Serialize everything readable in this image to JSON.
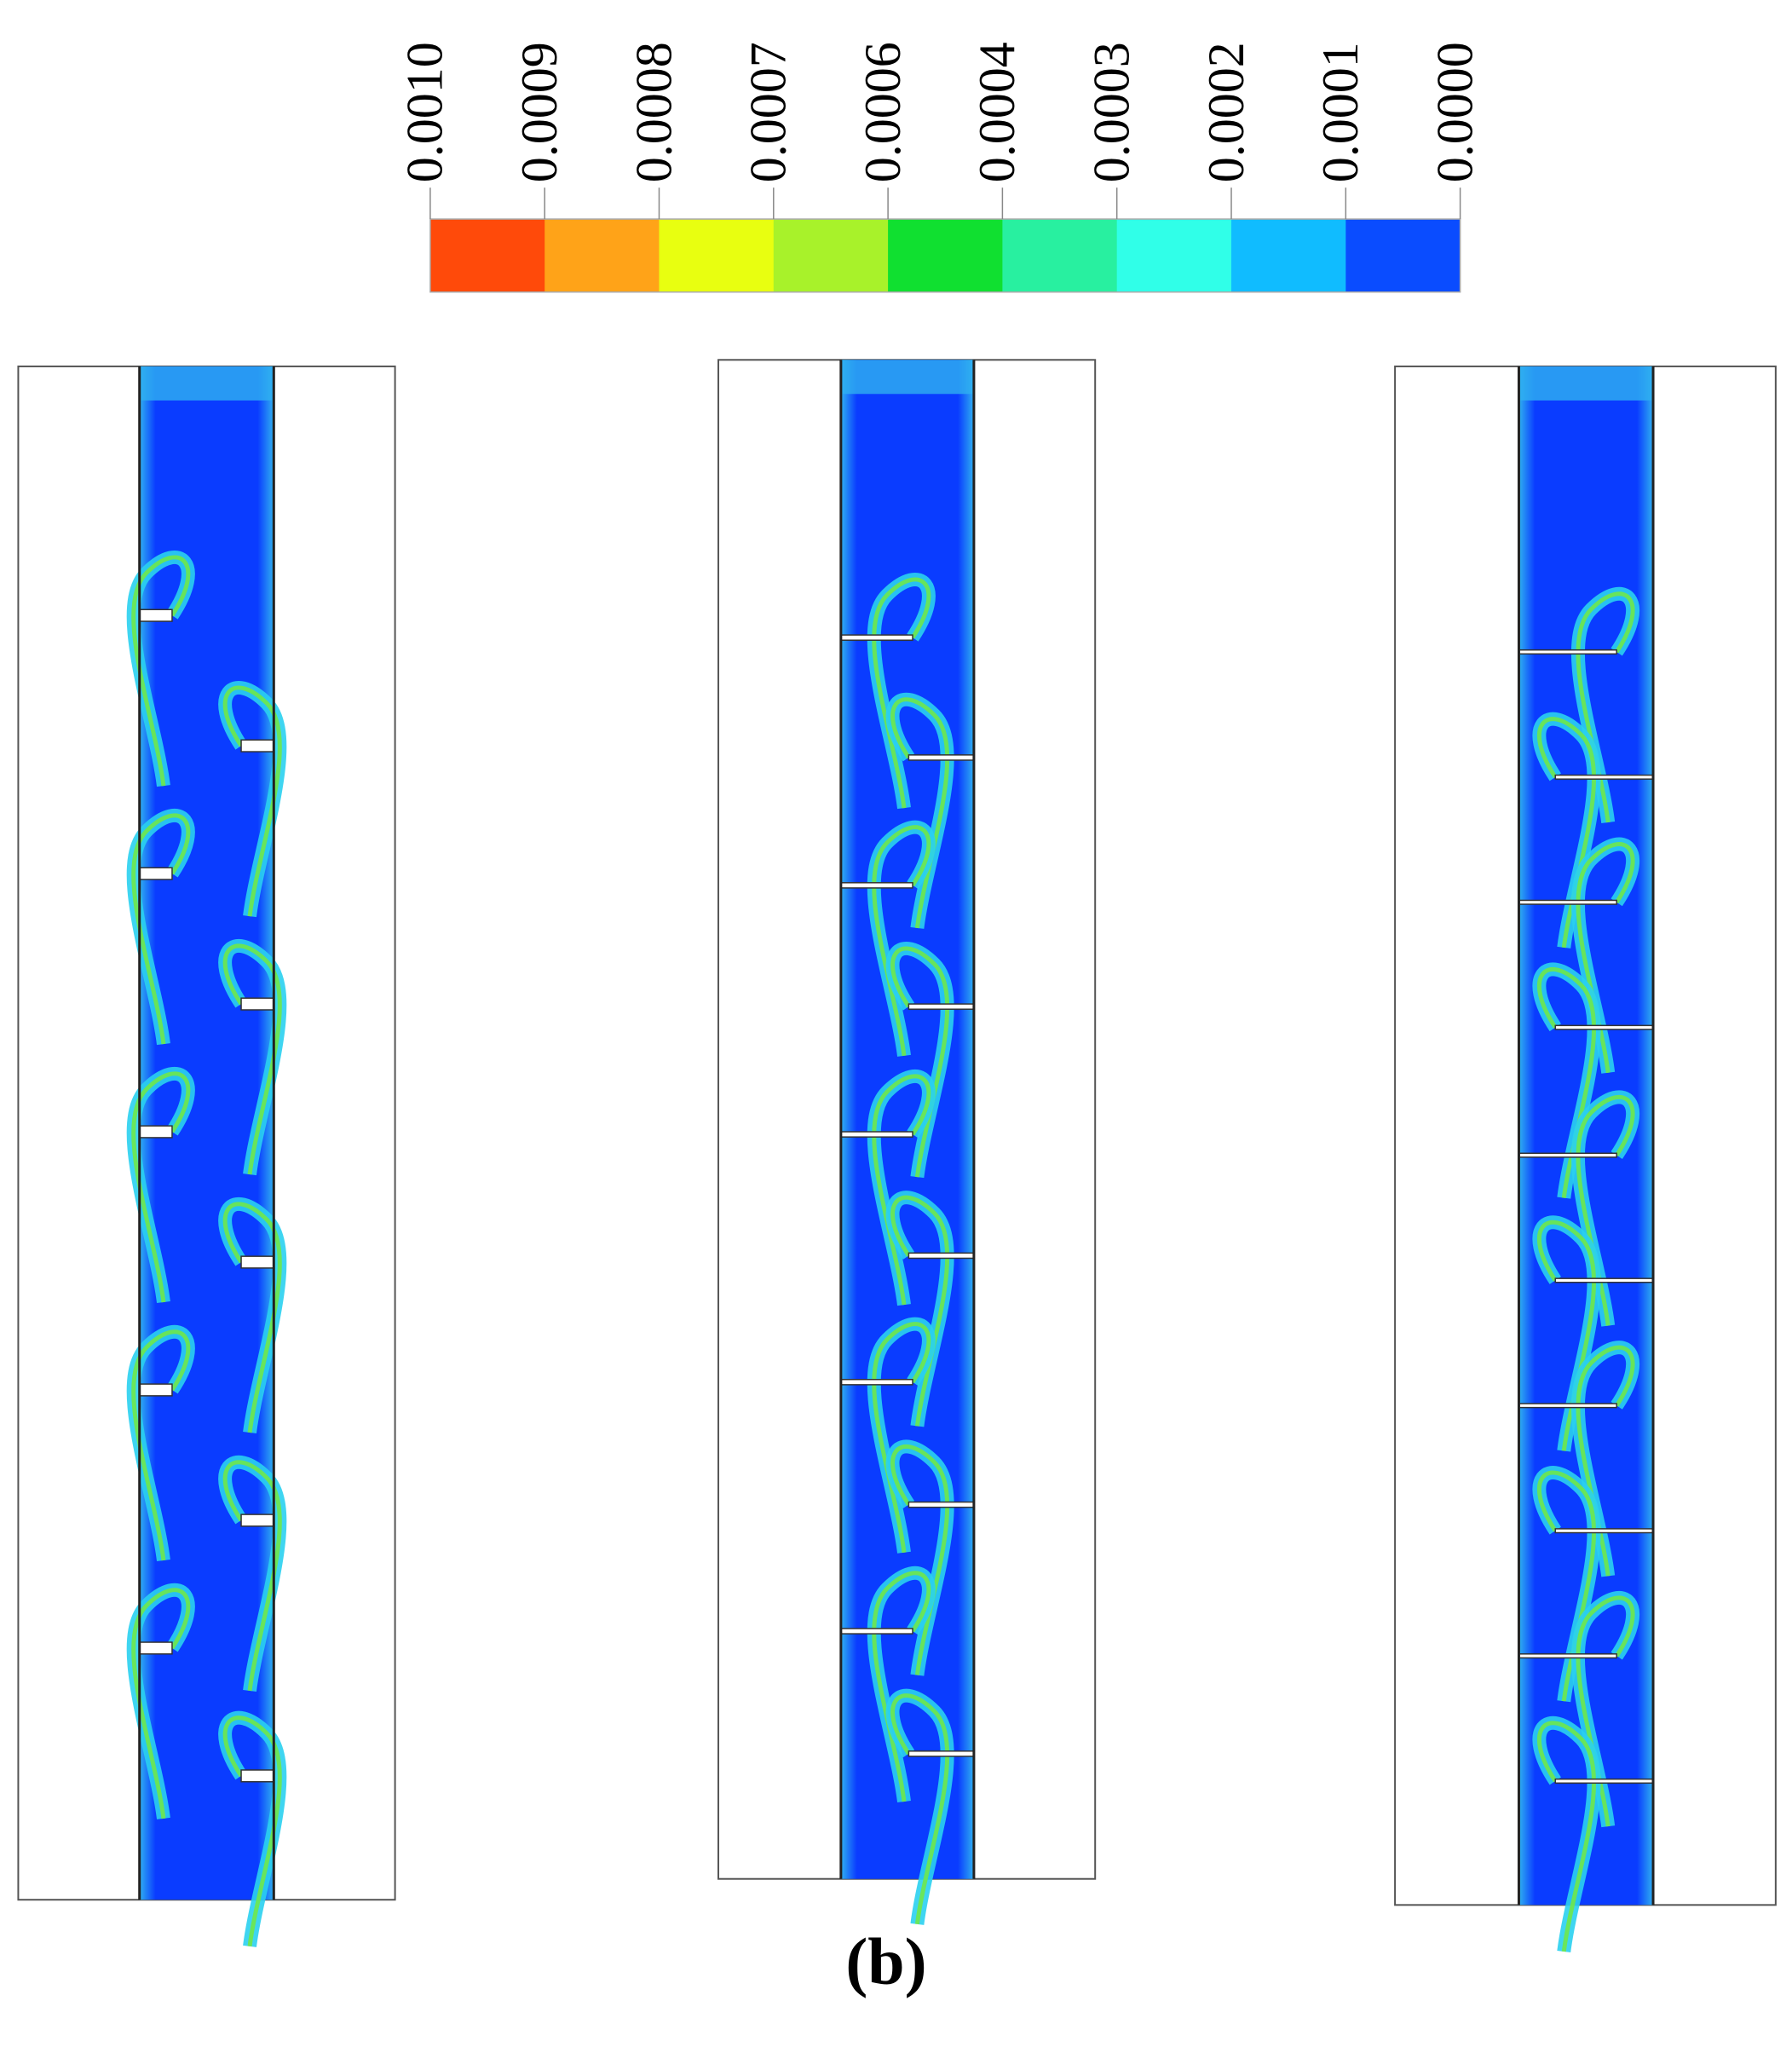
{
  "colorbar": {
    "labels": [
      "0.0010",
      "0.0009",
      "0.0008",
      "0.0007",
      "0.0006",
      "0.0004",
      "0.0003",
      "0.0002",
      "0.0001",
      "0.0000"
    ],
    "colors": [
      "#ff4a0a",
      "#ffa318",
      "#e8ff10",
      "#a8f22a",
      "#10e030",
      "#28f0a0",
      "#30ffe8",
      "#10bcff",
      "#0a4cff"
    ]
  },
  "caption": "(b)"
}
